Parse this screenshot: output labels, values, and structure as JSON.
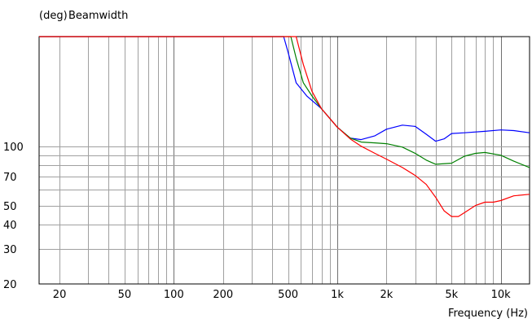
{
  "chart_data": {
    "type": "line",
    "title": "Beamwidth",
    "ylabel": "(deg)",
    "xlabel": "Frequency  (Hz)",
    "x_scale": "log",
    "y_scale": "log",
    "xlim": [
      15,
      15000
    ],
    "ylim": [
      20,
      360
    ],
    "grid": true,
    "x_ticks": [
      {
        "value": 20,
        "label": "20"
      },
      {
        "value": 50,
        "label": "50"
      },
      {
        "value": 100,
        "label": "100"
      },
      {
        "value": 200,
        "label": "200"
      },
      {
        "value": 500,
        "label": "500"
      },
      {
        "value": 1000,
        "label": "1k"
      },
      {
        "value": 2000,
        "label": "2k"
      },
      {
        "value": 5000,
        "label": "5k"
      },
      {
        "value": 10000,
        "label": "10k"
      }
    ],
    "y_ticks": [
      {
        "value": 20,
        "label": "20"
      },
      {
        "value": 30,
        "label": "30"
      },
      {
        "value": 40,
        "label": "40"
      },
      {
        "value": 50,
        "label": "50"
      },
      {
        "value": 70,
        "label": "70"
      },
      {
        "value": 100,
        "label": "100"
      }
    ],
    "series": [
      {
        "color": "#0000ff",
        "points": [
          [
            15,
            360
          ],
          [
            470,
            360
          ],
          [
            500,
            300
          ],
          [
            560,
            210
          ],
          [
            650,
            180
          ],
          [
            800,
            155
          ],
          [
            1000,
            125
          ],
          [
            1200,
            110
          ],
          [
            1400,
            108
          ],
          [
            1700,
            113
          ],
          [
            2000,
            122
          ],
          [
            2500,
            128
          ],
          [
            3000,
            126
          ],
          [
            3500,
            115
          ],
          [
            4000,
            106
          ],
          [
            4500,
            109
          ],
          [
            5000,
            116
          ],
          [
            6000,
            117
          ],
          [
            8000,
            119
          ],
          [
            10000,
            121
          ],
          [
            12000,
            120
          ],
          [
            15000,
            117
          ]
        ]
      },
      {
        "color": "#008000",
        "points": [
          [
            15,
            360
          ],
          [
            520,
            360
          ],
          [
            560,
            280
          ],
          [
            620,
            210
          ],
          [
            700,
            180
          ],
          [
            800,
            155
          ],
          [
            1000,
            125
          ],
          [
            1200,
            110
          ],
          [
            1400,
            105
          ],
          [
            1700,
            104
          ],
          [
            2000,
            103
          ],
          [
            2500,
            99
          ],
          [
            3000,
            92
          ],
          [
            3500,
            85
          ],
          [
            4000,
            81
          ],
          [
            5000,
            82
          ],
          [
            6000,
            89
          ],
          [
            7000,
            92
          ],
          [
            8000,
            93
          ],
          [
            10000,
            90
          ],
          [
            12000,
            84
          ],
          [
            15000,
            78
          ]
        ]
      },
      {
        "color": "#ff0000",
        "points": [
          [
            15,
            360
          ],
          [
            560,
            360
          ],
          [
            620,
            260
          ],
          [
            700,
            190
          ],
          [
            800,
            155
          ],
          [
            1000,
            125
          ],
          [
            1200,
            109
          ],
          [
            1400,
            100
          ],
          [
            1700,
            92
          ],
          [
            2000,
            86
          ],
          [
            2500,
            78
          ],
          [
            3000,
            71
          ],
          [
            3500,
            64
          ],
          [
            4000,
            55
          ],
          [
            4500,
            47
          ],
          [
            5000,
            44
          ],
          [
            5500,
            44
          ],
          [
            6000,
            46
          ],
          [
            7000,
            50
          ],
          [
            8000,
            52
          ],
          [
            9000,
            52
          ],
          [
            10000,
            53
          ],
          [
            12000,
            56
          ],
          [
            15000,
            57
          ]
        ]
      }
    ]
  }
}
